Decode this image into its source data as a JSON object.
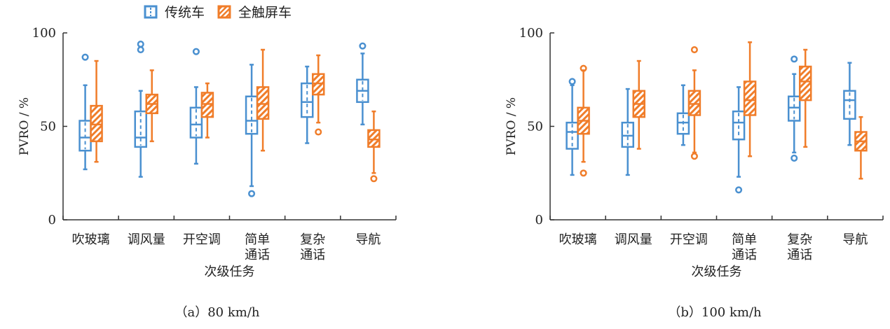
{
  "legend": {
    "traditional": "传统车",
    "touchscreen": "全触屏车"
  },
  "colors": {
    "traditional": "#4a90d0",
    "touchscreen": "#f07d2a",
    "axis": "#333333"
  },
  "chart_data": [
    {
      "type": "box",
      "caption": "（a）80 km/h",
      "ylabel": "PVRO / %",
      "xlabel": "次级任务",
      "ylim": [
        0,
        100
      ],
      "yticks": [
        0,
        50,
        100
      ],
      "categories": [
        "吹玻璃",
        "调风量",
        "开空调",
        "简单\n通话",
        "复杂\n通话",
        "导航"
      ],
      "series": [
        {
          "name": "传统车",
          "boxes": [
            {
              "min": 27,
              "q1": 37,
              "median": 44,
              "q3": 53,
              "max": 72,
              "outliers": [
                87
              ]
            },
            {
              "min": 23,
              "q1": 39,
              "median": 44,
              "q3": 58,
              "max": 69,
              "outliers": [
                91,
                94
              ]
            },
            {
              "min": 30,
              "q1": 44,
              "median": 51,
              "q3": 60,
              "max": 71,
              "outliers": [
                90
              ]
            },
            {
              "min": 18,
              "q1": 46,
              "median": 53,
              "q3": 66,
              "max": 83,
              "outliers": [
                14
              ]
            },
            {
              "min": 41,
              "q1": 55,
              "median": 63,
              "q3": 73,
              "max": 82,
              "outliers": []
            },
            {
              "min": 51,
              "q1": 63,
              "median": 69,
              "q3": 75,
              "max": 89,
              "outliers": [
                93
              ]
            }
          ]
        },
        {
          "name": "全触屏车",
          "boxes": [
            {
              "min": 31,
              "q1": 42,
              "median": 51,
              "q3": 61,
              "max": 85,
              "outliers": []
            },
            {
              "min": 42,
              "q1": 57,
              "median": 62,
              "q3": 67,
              "max": 80,
              "outliers": []
            },
            {
              "min": 44,
              "q1": 55,
              "median": 62,
              "q3": 68,
              "max": 73,
              "outliers": []
            },
            {
              "min": 37,
              "q1": 54,
              "median": 62,
              "q3": 71,
              "max": 91,
              "outliers": []
            },
            {
              "min": 52,
              "q1": 67,
              "median": 73,
              "q3": 78,
              "max": 88,
              "outliers": [
                47
              ]
            },
            {
              "min": 25,
              "q1": 39,
              "median": 43,
              "q3": 48,
              "max": 58,
              "outliers": [
                22
              ]
            }
          ]
        }
      ]
    },
    {
      "type": "box",
      "caption": "（b）100 km/h",
      "ylabel": "PVRO / %",
      "xlabel": "次级任务",
      "ylim": [
        0,
        100
      ],
      "yticks": [
        0,
        50,
        100
      ],
      "categories": [
        "吹玻璃",
        "调风量",
        "开空调",
        "简单\n通话",
        "复杂\n通话",
        "导航"
      ],
      "series": [
        {
          "name": "传统车",
          "boxes": [
            {
              "min": 24,
              "q1": 38,
              "median": 47,
              "q3": 52,
              "max": 72,
              "outliers": [
                74
              ]
            },
            {
              "min": 24,
              "q1": 39,
              "median": 45,
              "q3": 52,
              "max": 70,
              "outliers": []
            },
            {
              "min": 40,
              "q1": 46,
              "median": 52,
              "q3": 57,
              "max": 72,
              "outliers": []
            },
            {
              "min": 23,
              "q1": 43,
              "median": 52,
              "q3": 58,
              "max": 71,
              "outliers": [
                16
              ]
            },
            {
              "min": 36,
              "q1": 53,
              "median": 60,
              "q3": 66,
              "max": 78,
              "outliers": [
                33,
                86
              ]
            },
            {
              "min": 40,
              "q1": 54,
              "median": 64,
              "q3": 69,
              "max": 84,
              "outliers": []
            }
          ]
        },
        {
          "name": "全触屏车",
          "boxes": [
            {
              "min": 31,
              "q1": 46,
              "median": 53,
              "q3": 60,
              "max": 80,
              "outliers": [
                25,
                81
              ]
            },
            {
              "min": 38,
              "q1": 55,
              "median": 62,
              "q3": 69,
              "max": 85,
              "outliers": []
            },
            {
              "min": 36,
              "q1": 56,
              "median": 62,
              "q3": 69,
              "max": 80,
              "outliers": [
                34,
                91
              ]
            },
            {
              "min": 34,
              "q1": 56,
              "median": 64,
              "q3": 74,
              "max": 95,
              "outliers": []
            },
            {
              "min": 39,
              "q1": 64,
              "median": 74,
              "q3": 82,
              "max": 91,
              "outliers": []
            },
            {
              "min": 22,
              "q1": 37,
              "median": 42,
              "q3": 47,
              "max": 55,
              "outliers": []
            }
          ]
        }
      ]
    }
  ]
}
